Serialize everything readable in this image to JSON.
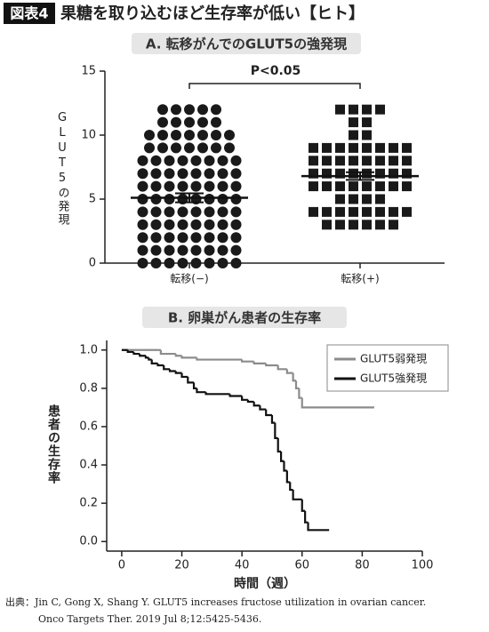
{
  "header": {
    "badge": "図表4",
    "title": "果糖を取り込むほど生存率が低い【ヒト】"
  },
  "chart_data": [
    {
      "type": "dot",
      "title": "A. 転移がんでのGLUT5の強発現",
      "y_label": "GLUT5の発現",
      "annotation": "P<0.05",
      "categories": [
        "転移(−)",
        "転移(+)"
      ],
      "values": [
        [
          0,
          0,
          0,
          0,
          0,
          0,
          0,
          0,
          1,
          1,
          1,
          1,
          1,
          1,
          1,
          1,
          2,
          2,
          2,
          2,
          2,
          2,
          2,
          2,
          3,
          3,
          3,
          3,
          3,
          3,
          3,
          3,
          4,
          4,
          4,
          4,
          4,
          4,
          4,
          4,
          5,
          5,
          5,
          5,
          5,
          5,
          5,
          5,
          6,
          6,
          6,
          6,
          6,
          6,
          6,
          6,
          7,
          7,
          7,
          7,
          7,
          7,
          7,
          7,
          8,
          8,
          8,
          8,
          8,
          8,
          8,
          8,
          9,
          9,
          9,
          9,
          9,
          9,
          9,
          10,
          10,
          10,
          10,
          10,
          10,
          10,
          11,
          11,
          11,
          11,
          11,
          12,
          12,
          12,
          12,
          12
        ],
        [
          3,
          3,
          3,
          3,
          3,
          3,
          4,
          4,
          4,
          4,
          4,
          4,
          4,
          4,
          5,
          5,
          5,
          5,
          6,
          6,
          6,
          6,
          6,
          6,
          6,
          6,
          7,
          7,
          7,
          7,
          7,
          7,
          7,
          7,
          8,
          8,
          8,
          8,
          8,
          8,
          8,
          8,
          9,
          9,
          9,
          9,
          9,
          9,
          9,
          9,
          10,
          10,
          11,
          11,
          12,
          12,
          12,
          12
        ]
      ],
      "means": [
        5.1,
        6.8
      ],
      "errors": [
        0.35,
        0.3
      ],
      "marker_shapes": [
        "circle",
        "square"
      ],
      "color": "#1a1a1a",
      "ylim": [
        0,
        15
      ],
      "yticks": [
        0,
        5,
        10,
        15
      ]
    },
    {
      "type": "step",
      "title": "B. 卵巣がん患者の生存率",
      "x_label": "時間（週）",
      "y_label": "患者の生存率",
      "legend": "top-right",
      "series": [
        {
          "name": "GLUT5弱発現",
          "color": "#8c8c8c",
          "x": [
            0,
            12,
            13,
            18,
            20,
            25,
            40,
            44,
            48,
            52,
            55,
            57,
            58,
            59,
            60,
            84
          ],
          "values": [
            1.0,
            1.0,
            0.98,
            0.97,
            0.96,
            0.95,
            0.94,
            0.93,
            0.92,
            0.9,
            0.88,
            0.84,
            0.8,
            0.75,
            0.7,
            0.7
          ]
        },
        {
          "name": "GLUT5強発現",
          "color": "#111111",
          "x": [
            0,
            2,
            4,
            6,
            8,
            9,
            10,
            12,
            14,
            16,
            18,
            20,
            22,
            24,
            25,
            28,
            36,
            40,
            42,
            44,
            46,
            48,
            50,
            51,
            52,
            53,
            54,
            55,
            56,
            57,
            60,
            61,
            62,
            69
          ],
          "values": [
            1.0,
            0.99,
            0.98,
            0.97,
            0.96,
            0.95,
            0.93,
            0.92,
            0.9,
            0.89,
            0.88,
            0.86,
            0.83,
            0.8,
            0.78,
            0.77,
            0.76,
            0.74,
            0.73,
            0.71,
            0.69,
            0.66,
            0.62,
            0.54,
            0.47,
            0.42,
            0.37,
            0.31,
            0.27,
            0.22,
            0.16,
            0.1,
            0.06,
            0.06
          ]
        }
      ],
      "xlim": [
        -5,
        100
      ],
      "xticks": [
        0,
        20,
        40,
        60,
        80,
        100
      ],
      "ylim": [
        -0.05,
        1.05
      ],
      "yticks": [
        {
          "value": 0,
          "label": "0.0"
        },
        {
          "value": 0.2,
          "label": "0.2"
        },
        {
          "value": 0.4,
          "label": "0.4"
        },
        {
          "value": 0.6,
          "label": "0.6"
        },
        {
          "value": 0.8,
          "label": "0.8"
        },
        {
          "value": 1.0,
          "label": "1.0"
        }
      ]
    }
  ],
  "source": {
    "line1": "出典：Jin C, Gong X, Shang Y. GLUT5 increases fructose utilization in ovarian cancer.",
    "line2": "Onco Targets Ther. 2019 Jul 8;12:5425-5436."
  }
}
